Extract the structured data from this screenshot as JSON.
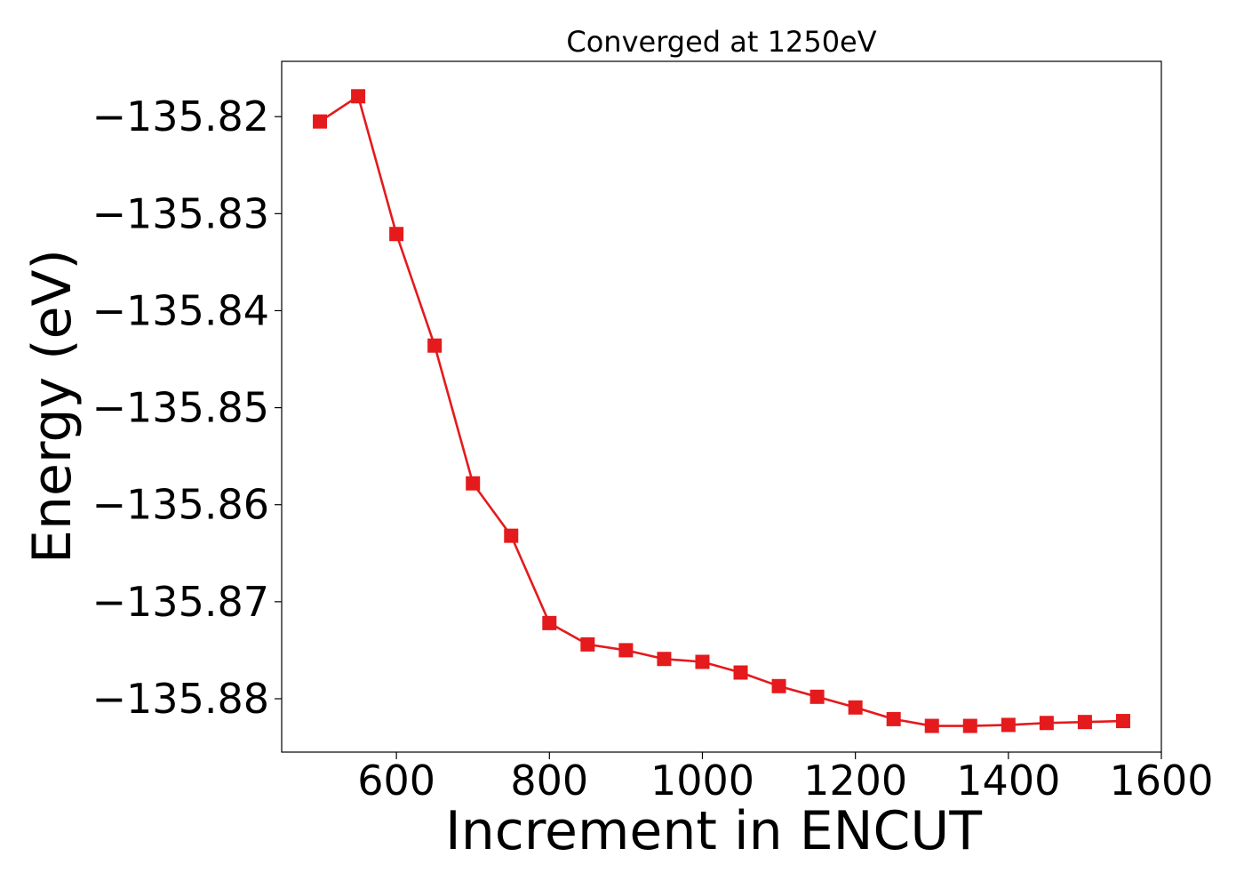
{
  "chart_data": {
    "type": "line",
    "title": "Converged at 1250eV",
    "xlabel": "Increment in ENCUT",
    "ylabel": "Energy (eV)",
    "xlim": [
      450,
      1600
    ],
    "ylim": [
      -135.8855,
      -135.8143
    ],
    "xticks": [
      600,
      800,
      1000,
      1200,
      1400,
      1600
    ],
    "yticks": [
      -135.82,
      -135.83,
      -135.84,
      -135.85,
      -135.86,
      -135.87,
      -135.88
    ],
    "ytick_labels": [
      "−135.82",
      "−135.83",
      "−135.84",
      "−135.85",
      "−135.86",
      "−135.87",
      "−135.88"
    ],
    "grid": false,
    "marker": "square",
    "color": "#e41a1c",
    "series": [
      {
        "x": [
          500,
          550,
          600,
          650,
          700,
          750,
          800,
          850,
          900,
          950,
          1000,
          1050,
          1100,
          1150,
          1200,
          1250,
          1300,
          1350,
          1400,
          1450,
          1500,
          1550
        ],
        "values": [
          -135.8205,
          -135.8179,
          -135.8321,
          -135.8436,
          -135.8578,
          -135.8632,
          -135.8722,
          -135.8744,
          -135.875,
          -135.8759,
          -135.8762,
          -135.8773,
          -135.8787,
          -135.8798,
          -135.8809,
          -135.8821,
          -135.8828,
          -135.8828,
          -135.8827,
          -135.8825,
          -135.8824,
          -135.8823
        ]
      }
    ]
  }
}
